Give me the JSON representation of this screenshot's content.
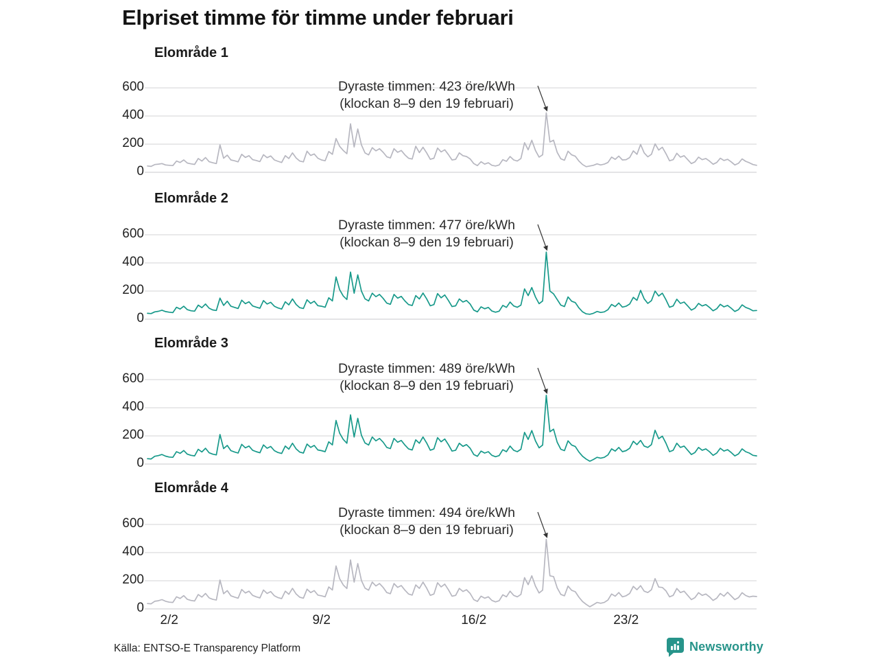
{
  "page": {
    "title": "Elpriset timme för timme under februari",
    "source": "Källa: ENTSO-E Transparency Platform",
    "brand": "Newsworthy",
    "colors": {
      "teal_line": "#17998a",
      "gray_line": "#b7b7c0",
      "gridline": "#dcdcdd",
      "brand_teal": "#27948a",
      "text": "#1a1a1a"
    }
  },
  "axes": {
    "ylim": [
      0,
      600
    ],
    "yticks": [
      600,
      400,
      200,
      0
    ],
    "xticks": [
      {
        "label": "2/2",
        "day": 2
      },
      {
        "label": "9/2",
        "day": 9
      },
      {
        "label": "16/2",
        "day": 16
      },
      {
        "label": "23/2",
        "day": 23
      }
    ],
    "grid": "horizontal only",
    "sampling": "values every 4 hours, 1 Feb 00:00 to 29 Feb 00:00"
  },
  "chart_data": [
    {
      "type": "line",
      "title": "Elområde 1",
      "line_color": "#b7b7c0",
      "annotation": [
        "Dyraste timmen: 423 öre/kWh",
        "(klockan 8–9 den 19 februari)"
      ],
      "peak": {
        "value": 423,
        "unit": "öre/kWh",
        "time": "klockan 8–9 den 19 februari"
      },
      "values": [
        45,
        42,
        55,
        58,
        62,
        52,
        50,
        48,
        80,
        70,
        88,
        66,
        60,
        56,
        98,
        80,
        105,
        75,
        68,
        62,
        195,
        100,
        122,
        88,
        82,
        74,
        128,
        106,
        118,
        90,
        84,
        76,
        125,
        104,
        116,
        88,
        78,
        70,
        118,
        98,
        138,
        102,
        80,
        74,
        150,
        120,
        130,
        100,
        88,
        82,
        148,
        128,
        240,
        185,
        155,
        132,
        345,
        180,
        308,
        195,
        138,
        124,
        175,
        152,
        168,
        142,
        110,
        102,
        168,
        142,
        155,
        124,
        100,
        94,
        185,
        140,
        178,
        138,
        92,
        100,
        172,
        145,
        160,
        126,
        88,
        92,
        138,
        118,
        112,
        95,
        62,
        48,
        75,
        58,
        68,
        50,
        45,
        52,
        90,
        78,
        112,
        88,
        80,
        98,
        210,
        160,
        228,
        155,
        108,
        125,
        423,
        215,
        228,
        142,
        96,
        86,
        150,
        124,
        114,
        80,
        55,
        40,
        45,
        50,
        60,
        52,
        58,
        70,
        108,
        92,
        115,
        88,
        90,
        105,
        152,
        128,
        198,
        138,
        110,
        128,
        202,
        158,
        178,
        132,
        82,
        90,
        135,
        108,
        118,
        90,
        62,
        74,
        108,
        90,
        98,
        80,
        57,
        70,
        100,
        84,
        92,
        74,
        52,
        64,
        95,
        78,
        68,
        55,
        50
      ]
    },
    {
      "type": "line",
      "title": "Elområde 2",
      "line_color": "#17998a",
      "annotation": [
        "Dyraste timmen: 477 öre/kWh",
        "(klockan 8–9 den 19 februari)"
      ],
      "peak": {
        "value": 477,
        "unit": "öre/kWh",
        "time": "klockan 8–9 den 19 februari"
      },
      "values": [
        42,
        40,
        52,
        56,
        64,
        54,
        50,
        47,
        85,
        72,
        92,
        68,
        60,
        57,
        100,
        82,
        108,
        78,
        66,
        62,
        150,
        98,
        128,
        92,
        84,
        76,
        135,
        110,
        124,
        94,
        86,
        78,
        132,
        108,
        120,
        92,
        80,
        72,
        124,
        102,
        144,
        105,
        82,
        76,
        138,
        112,
        128,
        96,
        92,
        85,
        152,
        130,
        300,
        210,
        165,
        140,
        335,
        185,
        315,
        200,
        145,
        130,
        185,
        160,
        176,
        148,
        114,
        106,
        176,
        150,
        162,
        130,
        104,
        97,
        168,
        144,
        186,
        145,
        95,
        104,
        182,
        152,
        172,
        133,
        90,
        95,
        144,
        122,
        133,
        108,
        65,
        52,
        88,
        74,
        84,
        58,
        50,
        57,
        98,
        84,
        122,
        94,
        85,
        100,
        215,
        168,
        225,
        158,
        110,
        130,
        477,
        200,
        180,
        140,
        100,
        90,
        158,
        128,
        118,
        80,
        52,
        38,
        35,
        42,
        55,
        48,
        52,
        68,
        105,
        90,
        115,
        86,
        92,
        108,
        155,
        134,
        205,
        145,
        112,
        132,
        200,
        165,
        185,
        138,
        85,
        94,
        142,
        112,
        122,
        94,
        65,
        78,
        112,
        94,
        104,
        84,
        60,
        74,
        106,
        88,
        98,
        78,
        55,
        68,
        102,
        84,
        74,
        60,
        62
      ]
    },
    {
      "type": "line",
      "title": "Elområde 3",
      "line_color": "#17998a",
      "annotation": [
        "Dyraste timmen: 489 öre/kWh",
        "(klockan 8–9 den 19 februari)"
      ],
      "peak": {
        "value": 489,
        "unit": "öre/kWh",
        "time": "klockan 8–9 den 19 februari"
      },
      "values": [
        38,
        36,
        55,
        60,
        68,
        56,
        50,
        48,
        88,
        76,
        96,
        70,
        62,
        58,
        105,
        86,
        112,
        80,
        70,
        65,
        210,
        110,
        132,
        95,
        86,
        78,
        140,
        115,
        128,
        98,
        88,
        80,
        136,
        112,
        125,
        95,
        82,
        75,
        128,
        106,
        148,
        108,
        85,
        78,
        142,
        118,
        132,
        100,
        95,
        88,
        158,
        136,
        310,
        220,
        175,
        148,
        350,
        192,
        325,
        205,
        150,
        135,
        192,
        165,
        182,
        155,
        118,
        110,
        182,
        155,
        168,
        135,
        108,
        100,
        172,
        148,
        192,
        150,
        98,
        108,
        188,
        158,
        178,
        138,
        92,
        98,
        148,
        126,
        138,
        112,
        68,
        55,
        92,
        78,
        88,
        62,
        52,
        60,
        102,
        88,
        128,
        98,
        88,
        105,
        225,
        175,
        238,
        165,
        115,
        135,
        489,
        230,
        248,
        155,
        105,
        95,
        165,
        135,
        125,
        85,
        55,
        35,
        20,
        32,
        48,
        42,
        48,
        65,
        108,
        92,
        118,
        88,
        95,
        112,
        162,
        138,
        168,
        128,
        118,
        138,
        240,
        180,
        198,
        148,
        88,
        98,
        148,
        118,
        128,
        98,
        68,
        82,
        118,
        98,
        108,
        88,
        62,
        78,
        112,
        92,
        102,
        82,
        58,
        72,
        108,
        88,
        78,
        62,
        58
      ]
    },
    {
      "type": "line",
      "title": "Elområde 4",
      "line_color": "#b7b7c0",
      "annotation": [
        "Dyraste timmen: 494 öre/kWh",
        "(klockan 8–9 den 19 februari)"
      ],
      "peak": {
        "value": 494,
        "unit": "öre/kWh",
        "time": "klockan 8–9 den 19 februari"
      },
      "values": [
        38,
        36,
        54,
        58,
        66,
        54,
        48,
        46,
        86,
        74,
        94,
        68,
        60,
        56,
        102,
        84,
        110,
        78,
        68,
        63,
        205,
        108,
        130,
        93,
        84,
        76,
        138,
        113,
        126,
        96,
        86,
        78,
        134,
        110,
        123,
        93,
        80,
        73,
        126,
        104,
        146,
        106,
        83,
        76,
        140,
        116,
        130,
        98,
        93,
        86,
        156,
        134,
        305,
        215,
        170,
        145,
        348,
        190,
        322,
        202,
        148,
        133,
        190,
        163,
        180,
        152,
        116,
        108,
        180,
        153,
        166,
        133,
        106,
        98,
        170,
        146,
        190,
        148,
        96,
        106,
        186,
        156,
        176,
        136,
        90,
        96,
        146,
        124,
        136,
        110,
        66,
        53,
        90,
        76,
        86,
        60,
        50,
        58,
        100,
        86,
        126,
        96,
        86,
        103,
        222,
        172,
        235,
        162,
        113,
        133,
        494,
        235,
        230,
        150,
        103,
        93,
        162,
        132,
        122,
        83,
        52,
        32,
        15,
        30,
        46,
        40,
        46,
        63,
        106,
        90,
        116,
        86,
        93,
        110,
        160,
        136,
        165,
        126,
        116,
        136,
        215,
        155,
        152,
        128,
        86,
        96,
        145,
        116,
        126,
        96,
        66,
        80,
        115,
        96,
        106,
        86,
        60,
        76,
        110,
        90,
        118,
        92,
        66,
        80,
        115,
        95,
        85,
        90,
        88
      ]
    }
  ]
}
